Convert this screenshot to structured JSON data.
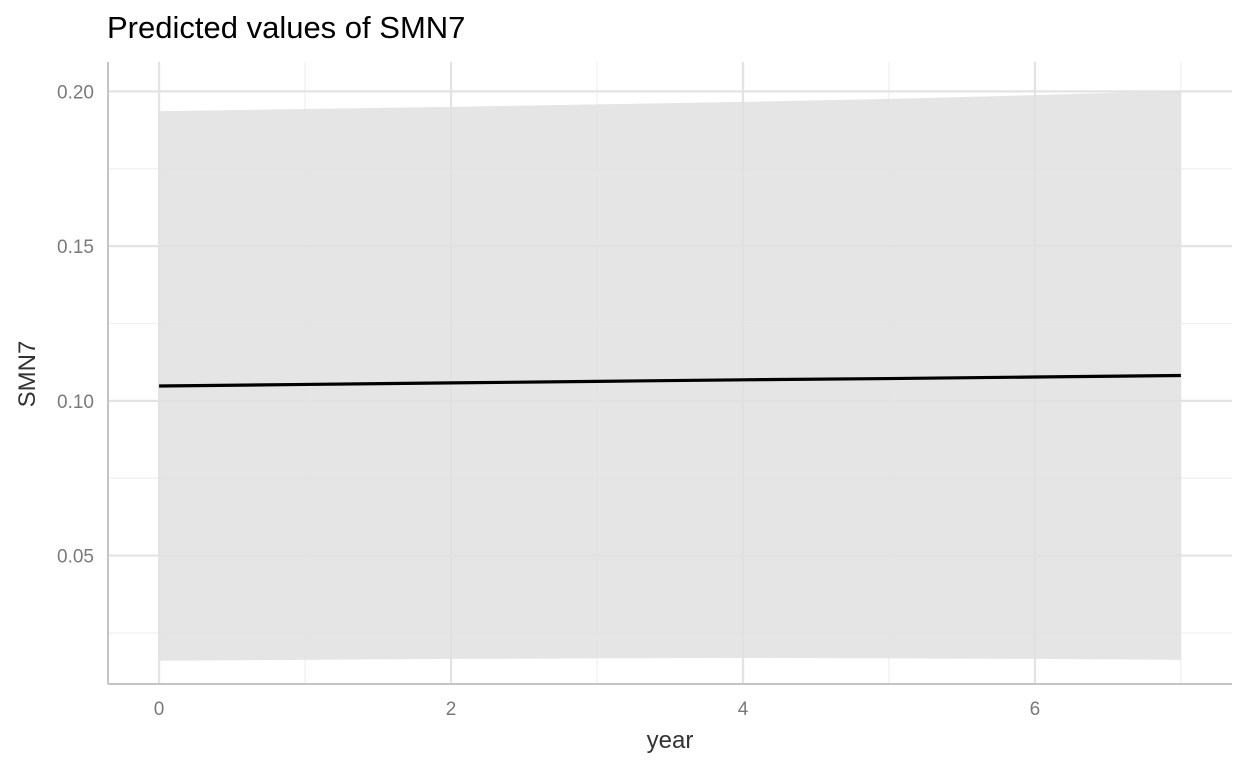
{
  "chart_data": {
    "type": "line",
    "title": "Predicted values of SMN7",
    "xlabel": "year",
    "ylabel": "SMN7",
    "xlim": [
      -0.35,
      7.35
    ],
    "ylim": [
      0.0085,
      0.2095
    ],
    "x_ticks": [
      0,
      2,
      4,
      6
    ],
    "x_tick_labels": [
      "0",
      "2",
      "4",
      "6"
    ],
    "y_ticks": [
      0.05,
      0.1,
      0.15,
      0.2
    ],
    "y_tick_labels": [
      "0.05",
      "0.10",
      "0.15",
      "0.20"
    ],
    "x_minor_ticks": [
      1,
      3,
      5,
      7
    ],
    "y_minor_ticks": [
      0.025,
      0.075,
      0.125,
      0.175
    ],
    "grid": true,
    "legend": "none",
    "series": [
      {
        "x": [
          0,
          1,
          2,
          3,
          4,
          5,
          6,
          7
        ],
        "y": [
          0.1048,
          0.1053,
          0.1058,
          0.1063,
          0.1068,
          0.1072,
          0.1077,
          0.1082
        ],
        "ci_low": [
          0.016,
          0.0163,
          0.0166,
          0.0168,
          0.0169,
          0.0168,
          0.0166,
          0.0163
        ],
        "ci_high": [
          0.1936,
          0.1943,
          0.195,
          0.1958,
          0.1966,
          0.1976,
          0.1988,
          0.2002
        ]
      }
    ],
    "colors": {
      "line": "#000000",
      "ribbon": "#e0e0e0",
      "grid_major": "#e3e3e3",
      "grid_minor": "#efefef",
      "axis_line": "#c4c4c4"
    }
  }
}
